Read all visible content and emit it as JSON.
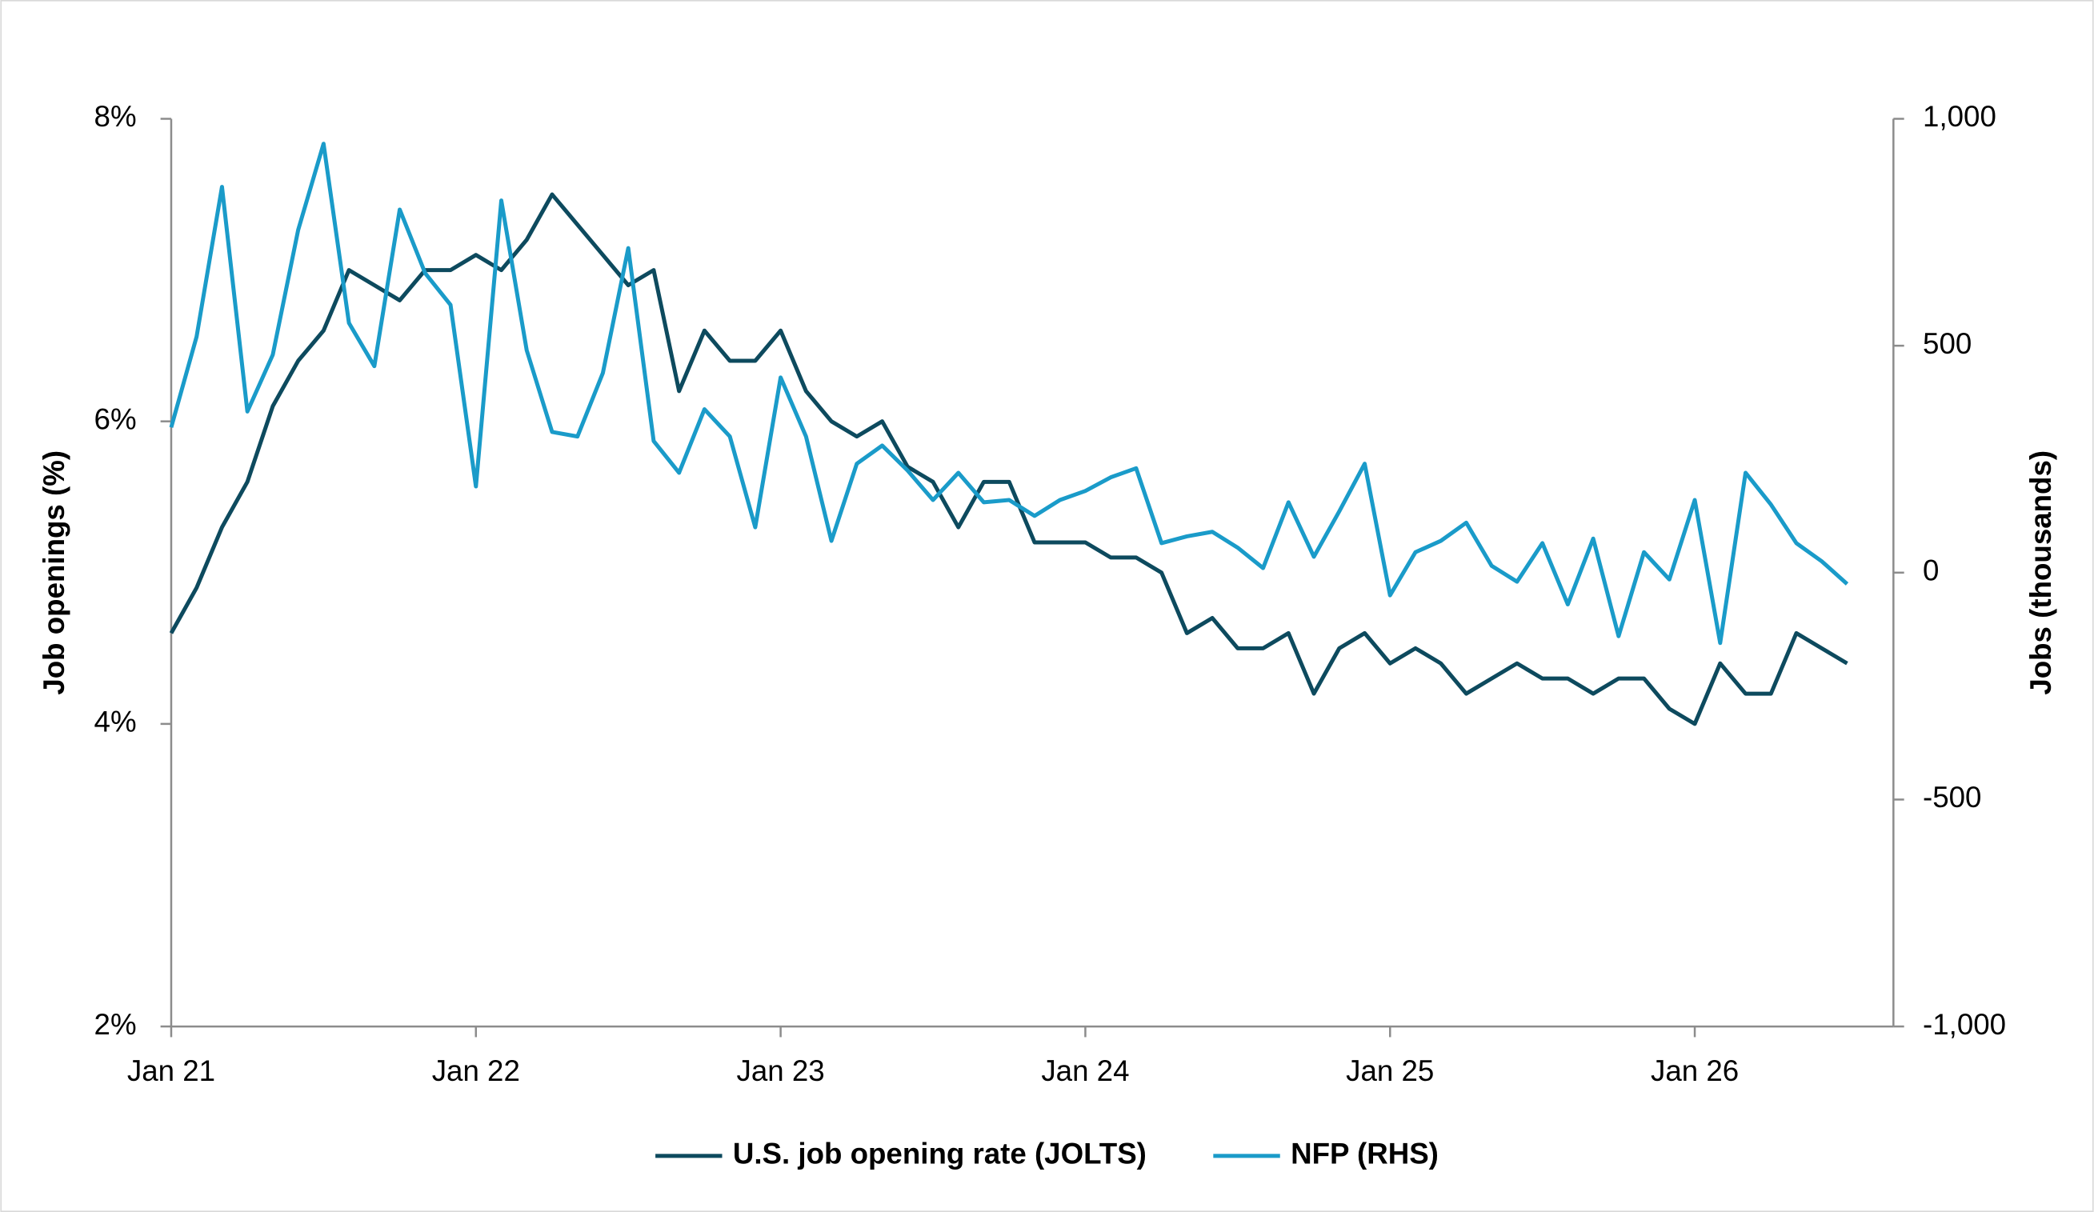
{
  "chart_data": {
    "type": "line",
    "y_label": "Job openings (%)",
    "y2_label": "Jobs (thousands)",
    "x": [
      "2021-01",
      "2021-02",
      "2021-03",
      "2021-04",
      "2021-05",
      "2021-06",
      "2021-07",
      "2021-08",
      "2021-09",
      "2021-10",
      "2021-11",
      "2021-12",
      "2022-01",
      "2022-02",
      "2022-03",
      "2022-04",
      "2022-05",
      "2022-06",
      "2022-07",
      "2022-08",
      "2022-09",
      "2022-10",
      "2022-11",
      "2022-12",
      "2023-01",
      "2023-02",
      "2023-03",
      "2023-04",
      "2023-05",
      "2023-06",
      "2023-07",
      "2023-08",
      "2023-09",
      "2023-10",
      "2023-11",
      "2023-12",
      "2024-01",
      "2024-02",
      "2024-03",
      "2024-04",
      "2024-05",
      "2024-06",
      "2024-07",
      "2024-08",
      "2024-09",
      "2024-10",
      "2024-11",
      "2024-12",
      "2025-01",
      "2025-02",
      "2025-03",
      "2025-04",
      "2025-05",
      "2025-06",
      "2025-07",
      "2025-08",
      "2025-09",
      "2025-10",
      "2025-11",
      "2025-12",
      "2026-01",
      "2026-02",
      "2026-03",
      "2026-04",
      "2026-05",
      "2026-06",
      "2026-07"
    ],
    "xticks": [
      {
        "value": "2021-01",
        "label": "Jan 21"
      },
      {
        "value": "2022-01",
        "label": "Jan 22"
      },
      {
        "value": "2023-01",
        "label": "Jan 23"
      },
      {
        "value": "2024-01",
        "label": "Jan 24"
      },
      {
        "value": "2025-01",
        "label": "Jan 25"
      },
      {
        "value": "2026-01",
        "label": "Jan 26"
      }
    ],
    "ylim": [
      2,
      8
    ],
    "yticks": [
      {
        "value": 2,
        "label": "2%"
      },
      {
        "value": 4,
        "label": "4%"
      },
      {
        "value": 6,
        "label": "6%"
      },
      {
        "value": 8,
        "label": "8%"
      }
    ],
    "y2lim": [
      -1000,
      1000
    ],
    "y2ticks": [
      {
        "value": -1000,
        "label": "-1,000"
      },
      -500,
      0,
      500,
      {
        "value": 1000,
        "label": "1,000"
      }
    ],
    "grid": false,
    "legend": "bottom",
    "series": [
      {
        "name": "U.S. job opening rate (JOLTS)",
        "color": "#0d4a5e",
        "values": [
          4.6,
          4.9,
          5.3,
          5.6,
          6.1,
          6.4,
          6.6,
          7.0,
          6.9,
          6.8,
          7.0,
          7.0,
          7.1,
          7.0,
          7.2,
          7.5,
          7.3,
          7.1,
          6.9,
          7.0,
          6.2,
          6.6,
          6.4,
          6.4,
          6.6,
          6.2,
          6.0,
          5.9,
          6.0,
          5.7,
          5.6,
          5.3,
          5.6,
          5.6,
          5.2,
          5.2,
          5.2,
          5.1,
          5.1,
          5.0,
          4.6,
          4.7,
          4.5,
          4.5,
          4.6,
          4.2,
          4.5,
          4.6,
          4.4,
          4.5,
          4.4,
          4.2,
          4.3,
          4.4,
          4.3,
          4.3,
          4.2,
          4.3,
          4.3,
          4.1,
          4.0,
          4.4,
          4.2,
          4.2,
          4.6,
          4.5,
          4.4
        ]
      },
      {
        "name": "NFP (RHS)",
        "color": "#1a9bc9",
        "axis": "y2",
        "values": [
          320,
          520,
          850,
          355,
          480,
          755,
          945,
          550,
          455,
          800,
          660,
          590,
          190,
          820,
          490,
          310,
          300,
          440,
          715,
          290,
          220,
          360,
          300,
          100,
          430,
          300,
          70,
          240,
          280,
          225,
          160,
          220,
          155,
          160,
          125,
          160,
          180,
          210,
          230,
          65,
          80,
          90,
          55,
          10,
          155,
          35,
          135,
          240,
          -50,
          45,
          70,
          110,
          15,
          -20,
          65,
          -70,
          75,
          -140,
          45,
          -15,
          160,
          -155,
          220,
          150,
          65,
          25,
          -25
        ]
      }
    ]
  }
}
